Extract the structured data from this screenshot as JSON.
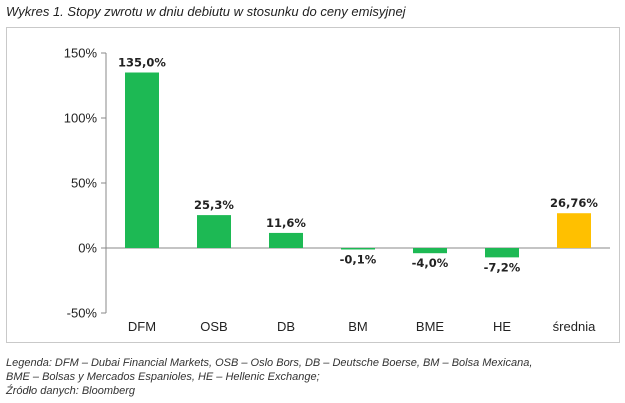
{
  "title": "Wykres 1. Stopy zwrotu w dniu debiutu w stosunku do ceny emisyjnej",
  "chart_data": {
    "type": "bar",
    "categories": [
      "DFM",
      "OSB",
      "DB",
      "BM",
      "BME",
      "HE",
      "średnia"
    ],
    "values": [
      135.0,
      25.3,
      11.6,
      -0.1,
      -4.0,
      -7.2,
      26.76
    ],
    "data_labels": [
      "135,0%",
      "25,3%",
      "11,6%",
      "-0,1%",
      "-4,0%",
      "-7,2%",
      "26,76%"
    ],
    "colors": [
      "#1db954",
      "#1db954",
      "#1db954",
      "#1db954",
      "#1db954",
      "#1db954",
      "#ffc000"
    ],
    "ylim": [
      -50,
      150
    ],
    "yticks": [
      -50,
      0,
      50,
      100,
      150
    ],
    "ytick_labels": [
      "-50%",
      "0%",
      "50%",
      "100%",
      "150%"
    ],
    "grid": false,
    "xlabel": "",
    "ylabel": ""
  },
  "notes": {
    "line1": "Legenda: DFM – Dubai Financial Markets, OSB – Oslo Bors, DB – Deutsche Boerse, BM – Bolsa Mexicana,",
    "line2": "BME – Bolsas y Mercados Espanioles, HE – Hellenic Exchange;",
    "line3": "Źródło danych: Bloomberg"
  }
}
